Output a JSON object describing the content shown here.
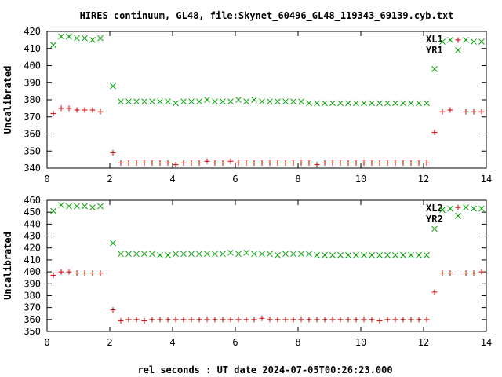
{
  "title": "HIRES continuum, GL48, file:Skynet_60496_GL48_119343_69139.cyb.txt",
  "xlabel": "rel seconds : UT date 2024-07-05T00:26:23.000",
  "colors": {
    "green": "#00a000",
    "red": "#d00000",
    "axis": "#000000"
  },
  "chart_data": [
    {
      "type": "scatter",
      "ylabel": "Uncalibrated",
      "xlim": [
        0,
        14
      ],
      "ylim": [
        340,
        420
      ],
      "xticks": [
        0,
        2,
        4,
        6,
        8,
        10,
        12,
        14
      ],
      "xtick_labels": [
        "0",
        "2",
        "4",
        "6",
        "8",
        "10",
        "12",
        "14"
      ],
      "yticks": [
        340,
        350,
        360,
        370,
        380,
        390,
        400,
        410,
        420
      ],
      "ytick_labels": [
        "340",
        "350",
        "360",
        "370",
        "380",
        "390",
        "400",
        "410",
        "420"
      ],
      "legend_position": "top-right",
      "series": [
        {
          "name": "XL1",
          "marker": "x",
          "color": "#00a000",
          "x": [
            0.2,
            0.45,
            0.7,
            0.95,
            1.2,
            1.45,
            1.7,
            2.1,
            2.35,
            2.6,
            2.85,
            3.1,
            3.35,
            3.6,
            3.85,
            4.1,
            4.35,
            4.6,
            4.85,
            5.1,
            5.35,
            5.6,
            5.85,
            6.1,
            6.35,
            6.6,
            6.85,
            7.1,
            7.35,
            7.6,
            7.85,
            8.1,
            8.35,
            8.6,
            8.85,
            9.1,
            9.35,
            9.6,
            9.85,
            10.1,
            10.35,
            10.6,
            10.85,
            11.1,
            11.35,
            11.6,
            11.85,
            12.1,
            12.35,
            12.6,
            12.85,
            13.1,
            13.35,
            13.6,
            13.85
          ],
          "y": [
            412,
            417,
            417,
            416,
            416,
            415,
            416,
            388,
            379,
            379,
            379,
            379,
            379,
            379,
            379,
            378,
            379,
            379,
            379,
            380,
            379,
            379,
            379,
            380,
            379,
            380,
            379,
            379,
            379,
            379,
            379,
            379,
            378,
            378,
            378,
            378,
            378,
            378,
            378,
            378,
            378,
            378,
            378,
            378,
            378,
            378,
            378,
            378,
            398,
            414,
            415,
            409,
            415,
            414,
            414
          ]
        },
        {
          "name": "YR1",
          "marker": "+",
          "color": "#d00000",
          "x": [
            0.2,
            0.45,
            0.7,
            0.95,
            1.2,
            1.45,
            1.7,
            2.1,
            2.35,
            2.6,
            2.85,
            3.1,
            3.35,
            3.6,
            3.85,
            4.1,
            4.35,
            4.6,
            4.85,
            5.1,
            5.35,
            5.6,
            5.85,
            6.1,
            6.35,
            6.6,
            6.85,
            7.1,
            7.35,
            7.6,
            7.85,
            8.1,
            8.35,
            8.6,
            8.85,
            9.1,
            9.35,
            9.6,
            9.85,
            10.1,
            10.35,
            10.6,
            10.85,
            11.1,
            11.35,
            11.6,
            11.85,
            12.1,
            12.35,
            12.6,
            12.85,
            13.1,
            13.35,
            13.6,
            13.85
          ],
          "y": [
            372,
            375,
            375,
            374,
            374,
            374,
            373,
            349,
            343,
            343,
            343,
            343,
            343,
            343,
            343,
            342,
            343,
            343,
            343,
            344,
            343,
            343,
            344,
            343,
            343,
            343,
            343,
            343,
            343,
            343,
            343,
            343,
            343,
            342,
            343,
            343,
            343,
            343,
            343,
            343,
            343,
            343,
            343,
            343,
            343,
            343,
            343,
            343,
            361,
            373,
            374,
            415,
            373,
            373,
            373
          ]
        }
      ]
    },
    {
      "type": "scatter",
      "ylabel": "Uncalibrated",
      "xlim": [
        0,
        14
      ],
      "ylim": [
        350,
        460
      ],
      "xticks": [
        0,
        2,
        4,
        6,
        8,
        10,
        12,
        14
      ],
      "xtick_labels": [
        "0",
        "2",
        "4",
        "6",
        "8",
        "10",
        "12",
        "14"
      ],
      "yticks": [
        350,
        360,
        370,
        380,
        390,
        400,
        410,
        420,
        430,
        440,
        450,
        460
      ],
      "ytick_labels": [
        "350",
        "360",
        "370",
        "380",
        "390",
        "400",
        "410",
        "420",
        "430",
        "440",
        "450",
        "460"
      ],
      "legend_position": "top-right",
      "series": [
        {
          "name": "XL2",
          "marker": "x",
          "color": "#00a000",
          "x": [
            0.2,
            0.45,
            0.7,
            0.95,
            1.2,
            1.45,
            1.7,
            2.1,
            2.35,
            2.6,
            2.85,
            3.1,
            3.35,
            3.6,
            3.85,
            4.1,
            4.35,
            4.6,
            4.85,
            5.1,
            5.35,
            5.6,
            5.85,
            6.1,
            6.35,
            6.6,
            6.85,
            7.1,
            7.35,
            7.6,
            7.85,
            8.1,
            8.35,
            8.6,
            8.85,
            9.1,
            9.35,
            9.6,
            9.85,
            10.1,
            10.35,
            10.6,
            10.85,
            11.1,
            11.35,
            11.6,
            11.85,
            12.1,
            12.35,
            12.6,
            12.85,
            13.1,
            13.35,
            13.6,
            13.85
          ],
          "y": [
            451,
            456,
            455,
            455,
            455,
            454,
            455,
            424,
            415,
            415,
            415,
            415,
            415,
            414,
            414,
            415,
            415,
            415,
            415,
            415,
            415,
            415,
            416,
            415,
            416,
            415,
            415,
            415,
            414,
            415,
            415,
            415,
            415,
            414,
            414,
            414,
            414,
            414,
            414,
            414,
            414,
            414,
            414,
            414,
            414,
            414,
            414,
            414,
            436,
            452,
            453,
            447,
            454,
            453,
            453
          ]
        },
        {
          "name": "YR2",
          "marker": "+",
          "color": "#d00000",
          "x": [
            0.2,
            0.45,
            0.7,
            0.95,
            1.2,
            1.45,
            1.7,
            2.1,
            2.35,
            2.6,
            2.85,
            3.1,
            3.35,
            3.6,
            3.85,
            4.1,
            4.35,
            4.6,
            4.85,
            5.1,
            5.35,
            5.6,
            5.85,
            6.1,
            6.35,
            6.6,
            6.85,
            7.1,
            7.35,
            7.6,
            7.85,
            8.1,
            8.35,
            8.6,
            8.85,
            9.1,
            9.35,
            9.6,
            9.85,
            10.1,
            10.35,
            10.6,
            10.85,
            11.1,
            11.35,
            11.6,
            11.85,
            12.1,
            12.35,
            12.6,
            12.85,
            13.1,
            13.35,
            13.6,
            13.85
          ],
          "y": [
            397,
            400,
            400,
            399,
            399,
            399,
            399,
            368,
            359,
            360,
            360,
            359,
            360,
            360,
            360,
            360,
            360,
            360,
            360,
            360,
            360,
            360,
            360,
            360,
            360,
            360,
            361,
            360,
            360,
            360,
            360,
            360,
            360,
            360,
            360,
            360,
            360,
            360,
            360,
            360,
            360,
            359,
            360,
            360,
            360,
            360,
            360,
            360,
            383,
            399,
            399,
            454,
            399,
            399,
            400
          ]
        }
      ]
    }
  ]
}
